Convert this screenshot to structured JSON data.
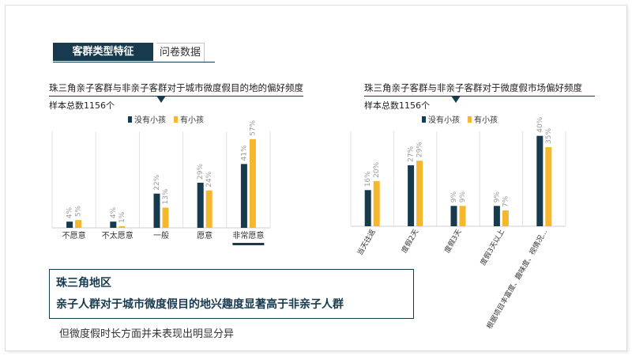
{
  "header": {
    "tag": "客群类型特征",
    "sub": "问卷数据"
  },
  "colors": {
    "navy": "#173a4e",
    "gold": "#f5b72e",
    "grid": "#e2e2e2",
    "value_label": "#9a9a9a"
  },
  "legend": {
    "no_child": "没有小孩",
    "with_child": "有小孩"
  },
  "chart_data": [
    {
      "type": "bar",
      "title": "珠三角亲子客群与非亲子客群对于城市微度假目的地的偏好频度",
      "subtitle": "样本总数1156个",
      "categories": [
        "不愿意",
        "不太愿意",
        "一般",
        "愿意",
        "非常愿意"
      ],
      "series": [
        {
          "name": "没有小孩",
          "values": [
            4,
            4,
            22,
            29,
            41
          ],
          "labels": [
            "4%",
            "4%",
            "22%",
            "29%",
            "41%"
          ]
        },
        {
          "name": "有小孩",
          "values": [
            5,
            1,
            13,
            24,
            57
          ],
          "labels": [
            "5%",
            "1%",
            "13%",
            "24%",
            "57%"
          ]
        }
      ],
      "ylim": [
        0,
        62
      ],
      "highlight_category": "非常愿意",
      "legend_position": "top"
    },
    {
      "type": "bar",
      "title": "珠三角亲子客群与非亲子客群对于微度假市场偏好频度",
      "subtitle": "样本总数1156个",
      "categories": [
        "当天往返",
        "度假2天",
        "度假3天",
        "度假3天以上",
        "根据项目丰富度、趣味度、视情况..."
      ],
      "series": [
        {
          "name": "没有小孩",
          "values": [
            16,
            27,
            9,
            9,
            40
          ],
          "labels": [
            "16%",
            "27%",
            "9%",
            "9%",
            "40%"
          ]
        },
        {
          "name": "有小孩",
          "values": [
            20,
            29,
            9,
            7,
            35
          ],
          "labels": [
            "20%",
            "29%",
            "9%",
            "7%",
            "35%"
          ]
        }
      ],
      "ylim": [
        0,
        42
      ],
      "legend_position": "top"
    }
  ],
  "conclusion": {
    "line1": "珠三角地区",
    "line2": "亲子人群对于城市微度假目的地兴趣度显著高于非亲子人群"
  },
  "footnote": "但微度假时长方面并未表现出明显分异"
}
